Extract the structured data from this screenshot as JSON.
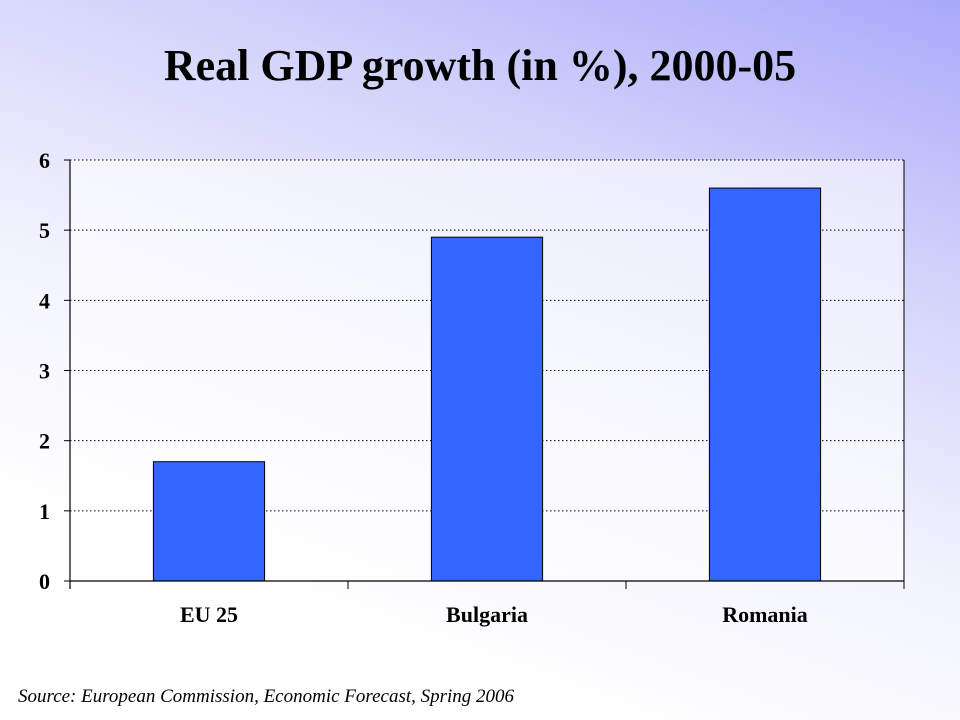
{
  "title": "Real GDP growth (in %), 2000-05",
  "source": "Source: European Commission, Economic Forecast, Spring 2006",
  "chart_data": {
    "type": "bar",
    "title": "Real GDP growth (in %), 2000-05",
    "categories": [
      "EU 25",
      "Bulgaria",
      "Romania"
    ],
    "values": [
      1.7,
      4.9,
      5.6
    ],
    "xlabel": "",
    "ylabel": "",
    "ylim": [
      0,
      6
    ],
    "yticks": [
      "0",
      "1",
      "2",
      "3",
      "4",
      "5",
      "6"
    ],
    "grid": "horizontal dotted",
    "legend": "none",
    "colors": {
      "bar": "#3366ff",
      "bar_border": "#000000"
    }
  }
}
